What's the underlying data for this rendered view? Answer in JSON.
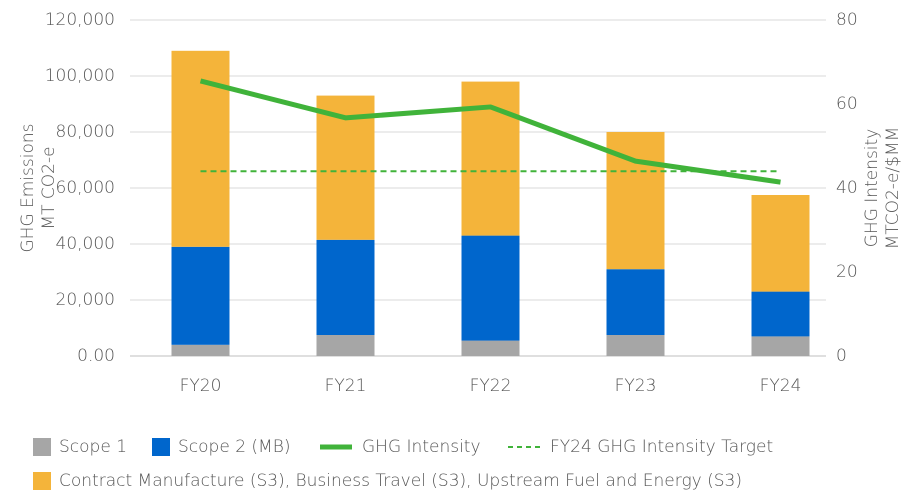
{
  "chart_data": {
    "type": "bar",
    "y_label": "GHG Emissions\nMT CO2-e",
    "y2_label": "GHG Intensity\nMTCO2-e/$MM",
    "categories": [
      "FY20",
      "FY21",
      "FY22",
      "FY23",
      "FY24"
    ],
    "series": [
      {
        "name": "Scope 1",
        "type": "bar",
        "color": "#a6a6a6",
        "values": [
          4000,
          7500,
          5500,
          7500,
          7000
        ]
      },
      {
        "name": "Scope 2 (MB)",
        "type": "bar",
        "color": "#0066cc",
        "values": [
          35000,
          34000,
          37500,
          23500,
          16000
        ]
      },
      {
        "name": "Contract Manufacture (S3), Business Travel (S3), Upstream Fuel and Energy (S3)",
        "type": "bar",
        "color": "#f4b43a",
        "values": [
          70000,
          51500,
          55000,
          49000,
          34500
        ]
      },
      {
        "name": "GHG Intensity",
        "type": "line",
        "axis": "y2",
        "color": "#40b33a",
        "values": [
          65.5,
          56.7,
          59.3,
          46.4,
          41.4
        ]
      },
      {
        "name": "FY24 GHG Intensity Target",
        "type": "line",
        "axis": "y2",
        "color": "#40b33a",
        "dashed": true,
        "values": [
          44,
          44,
          44,
          44,
          44
        ]
      }
    ],
    "stacked": true,
    "ylim": [
      0,
      120000
    ],
    "yticks": [
      {
        "value": 0,
        "label": "0.00"
      },
      {
        "value": 20000,
        "label": "20,000"
      },
      {
        "value": 40000,
        "label": "40,000"
      },
      {
        "value": 60000,
        "label": "60,000"
      },
      {
        "value": 80000,
        "label": "80,000"
      },
      {
        "value": 100000,
        "label": "100,000"
      },
      {
        "value": 120000,
        "label": "120,000"
      }
    ],
    "y2lim": [
      0,
      80
    ],
    "y2ticks": [
      0,
      20,
      40,
      60,
      80
    ],
    "grid": true
  }
}
